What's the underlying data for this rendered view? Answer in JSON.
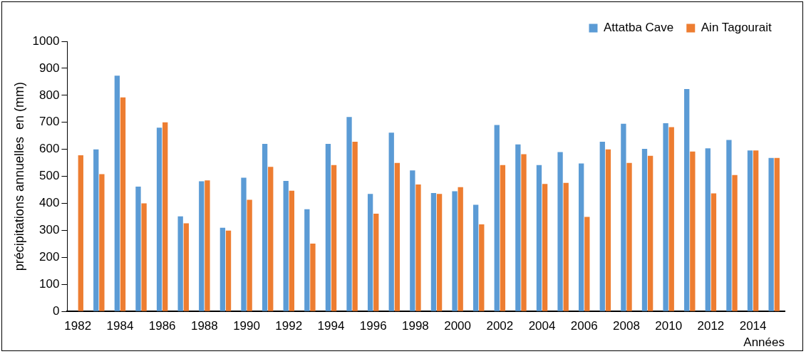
{
  "chart_data": {
    "type": "bar",
    "xlabel": "Années",
    "ylabel": "précipitations annuelles  en (mm)",
    "categories": [
      "1982",
      null,
      "1984",
      null,
      "1986",
      null,
      "1988",
      null,
      "1990",
      null,
      "1992",
      null,
      "1994",
      null,
      "1996",
      null,
      "1998",
      null,
      "2000",
      null,
      "2002",
      null,
      "2004",
      null,
      "2006",
      null,
      "2008",
      null,
      "2010",
      null,
      "2012",
      null,
      "2014",
      null
    ],
    "series": [
      {
        "name": "Attatba Cave",
        "color": "#5b9bd5",
        "values": [
          null,
          600,
          873,
          462,
          680,
          352,
          482,
          310,
          495,
          620,
          483,
          378,
          620,
          720,
          435,
          662,
          522,
          438,
          445,
          395,
          690,
          618,
          542,
          590,
          548,
          628,
          695,
          602,
          697,
          823,
          604,
          635,
          596,
          568
        ]
      },
      {
        "name": "Ain Tagourait",
        "color": "#ed7d31",
        "values": [
          578,
          508,
          792,
          400,
          700,
          326,
          485,
          299,
          413,
          535,
          447,
          251,
          542,
          628,
          362,
          550,
          470,
          435,
          460,
          322,
          542,
          582,
          472,
          476,
          350,
          600,
          550,
          576,
          682,
          592,
          437,
          505,
          596,
          568
        ]
      }
    ],
    "ylim": [
      0,
      1000
    ],
    "yticks": [
      0,
      100,
      200,
      300,
      400,
      500,
      600,
      700,
      800,
      900,
      1000
    ],
    "grid": false,
    "legend": "top right"
  }
}
